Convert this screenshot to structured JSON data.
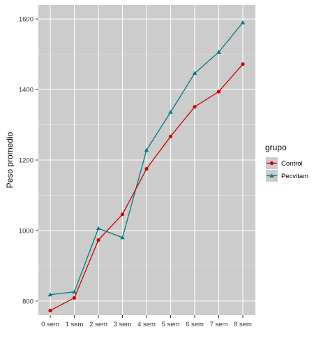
{
  "chart_data": {
    "type": "line",
    "title": "",
    "xlabel": "",
    "ylabel": "Peso promedio",
    "categories": [
      "0 sem",
      "1 sem",
      "2 sem",
      "3 sem",
      "4 sem",
      "5 sem",
      "6 sem",
      "7 sem",
      "8 sem"
    ],
    "ylim": [
      760,
      1640
    ],
    "yticks": [
      800,
      1000,
      1200,
      1400,
      1600
    ],
    "grid": true,
    "panel_background": "#cccccc",
    "legend": {
      "title": "grupo",
      "position": "right"
    },
    "series": [
      {
        "name": "Control",
        "color": "#cc0000",
        "marker": "circle",
        "values": [
          773,
          809,
          973,
          1046,
          1175,
          1267,
          1351,
          1394,
          1472
        ]
      },
      {
        "name": "Pecvitam",
        "color": "#007a80",
        "marker": "triangle",
        "values": [
          818,
          826,
          1006,
          980,
          1228,
          1336,
          1446,
          1506,
          1590
        ]
      }
    ]
  }
}
